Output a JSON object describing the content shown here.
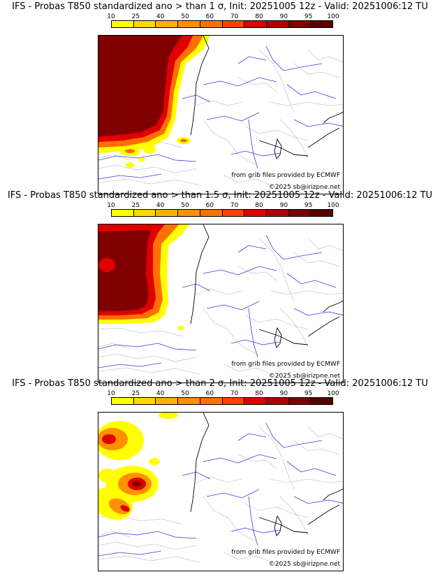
{
  "colors": {
    "scale": [
      "#ffff00",
      "#ffd700",
      "#ffb000",
      "#ff9000",
      "#ff7000",
      "#ff4000",
      "#e00000",
      "#b00000",
      "#800000",
      "#5a0000"
    ],
    "rivers": "#3a3ae0",
    "borders": "#9a9a9a",
    "coast": "#000000"
  },
  "colorbar": {
    "ticks": [
      "10",
      "25",
      "40",
      "50",
      "60",
      "70",
      "80",
      "90",
      "95",
      "100"
    ]
  },
  "panels": [
    {
      "title": "IFS - Probas T850  standardized ano > than 1 σ, Init: 20251005 12z - Valid: 20251006:12 TU",
      "source_note": "from grib files provided by ECMWF",
      "copyright": "©2025 sb@irizpne.net"
    },
    {
      "title": "IFS - Probas T850  standardized ano > than 1.5 σ, Init: 20251005 12z - Valid: 20251006:12 TU",
      "source_note": "from grib files provided by ECMWF",
      "copyright": "©2025 sb@irizpne.net"
    },
    {
      "title": "IFS - Probas T850  standardized ano > than 2 σ, Init: 20251005 12z - Valid: 20251006:12 TU",
      "source_note": "from grib files provided by ECMWF",
      "copyright": "©2025 sb@irizpne.net"
    }
  ]
}
